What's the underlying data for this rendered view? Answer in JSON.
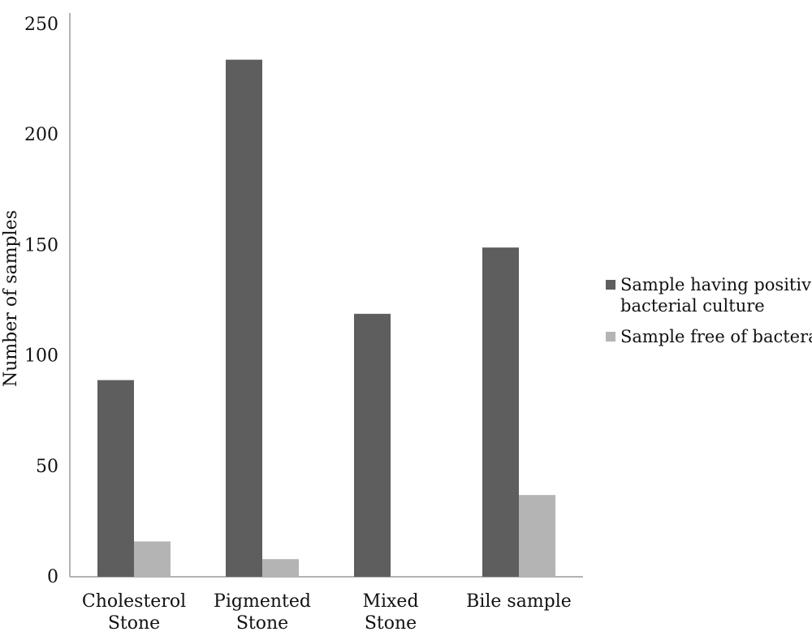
{
  "chart_data": {
    "type": "bar",
    "title": "",
    "xlabel": "",
    "ylabel": "Number of samples",
    "ylim": [
      0,
      250
    ],
    "yticks": [
      0,
      50,
      100,
      150,
      200,
      250
    ],
    "grid": false,
    "legend_position": "right",
    "categories": [
      [
        "Cholesterol",
        "Stone"
      ],
      [
        "Pigmented",
        "Stone"
      ],
      [
        "Mixed",
        "Stone"
      ],
      [
        "Bile sample"
      ]
    ],
    "series": [
      {
        "name": "Sample having positive bacterial culture",
        "legend_lines": [
          "Sample having positive",
          "bacterial culture"
        ],
        "color": "#5e5e5e",
        "values": [
          89,
          234,
          119,
          149
        ]
      },
      {
        "name": "Sample free of bactera",
        "legend_lines": [
          "Sample free of bactera"
        ],
        "color": "#b4b4b4",
        "values": [
          16,
          8,
          0,
          37
        ]
      }
    ]
  }
}
